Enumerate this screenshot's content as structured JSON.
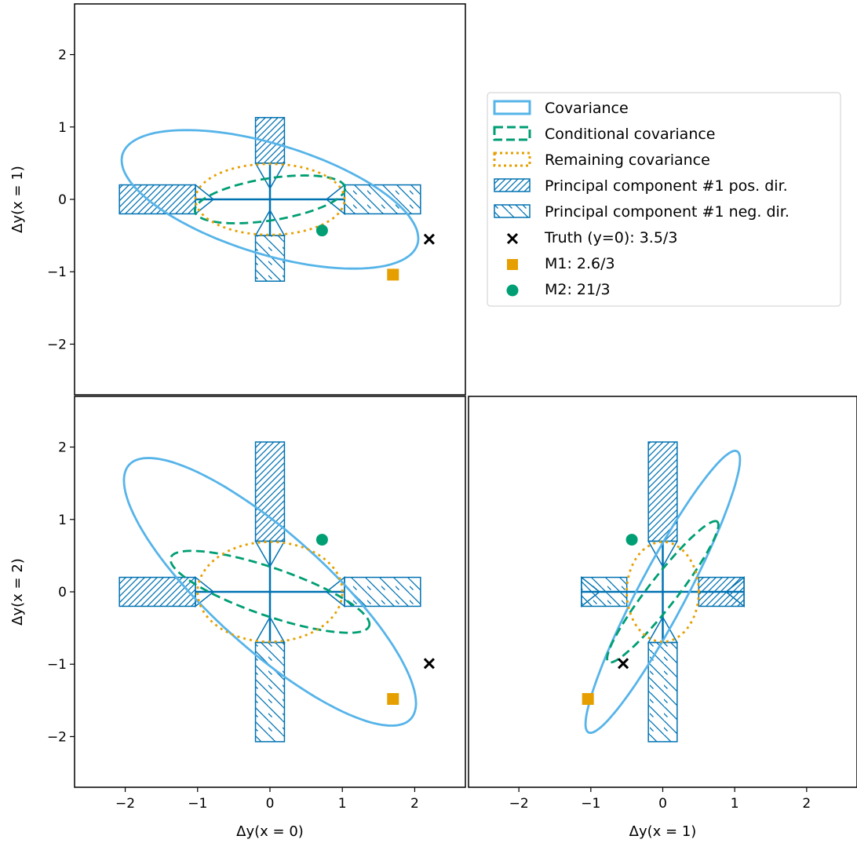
{
  "chart_data": [
    {
      "type": "scatter",
      "panel": "top-left",
      "xlabel": "",
      "ylabel": "Δy(x = 1)",
      "xlim": [
        -2.7,
        2.7
      ],
      "ylim": [
        -2.7,
        2.7
      ],
      "xticks": [],
      "yticks": [
        -2,
        -1,
        0,
        1,
        2
      ],
      "ytick_labels": [
        "−2",
        "−1",
        "0",
        "1",
        "2"
      ],
      "ellipses": [
        {
          "name": "Covariance",
          "cx": 0,
          "cy": 0,
          "a": 2.13,
          "b": 0.76,
          "angle_deg": -17
        },
        {
          "name": "Conditional covariance",
          "cx": 0,
          "cy": 0,
          "a": 1.05,
          "b": 0.29,
          "angle_deg": 9
        },
        {
          "name": "Remaining covariance",
          "cx": 0,
          "cy": 0,
          "a": 1.03,
          "b": 0.49,
          "angle_deg": 0
        }
      ],
      "pc_x": {
        "pos": [
          -2.08,
          -1.03
        ],
        "neg": [
          1.03,
          2.08
        ],
        "half_width": 0.2
      },
      "pc_y": {
        "pos": [
          0.5,
          1.13
        ],
        "neg": [
          -1.13,
          -0.5
        ],
        "half_width": 0.2
      },
      "points": {
        "truth": {
          "x": 2.2,
          "y": -0.55
        },
        "m1": {
          "x": 1.7,
          "y": -1.04
        },
        "m2": {
          "x": 0.72,
          "y": -0.43
        }
      }
    },
    {
      "type": "scatter",
      "panel": "bottom-left",
      "xlabel": "Δy(x = 0)",
      "ylabel": "Δy(x = 2)",
      "xlim": [
        -2.7,
        2.7
      ],
      "ylim": [
        -2.7,
        2.7
      ],
      "xticks": [
        -2,
        -1,
        0,
        1,
        2
      ],
      "xtick_labels": [
        "−2",
        "−1",
        "0",
        "1",
        "2"
      ],
      "yticks": [
        -2,
        -1,
        0,
        1,
        2
      ],
      "ytick_labels": [
        "−2",
        "−1",
        "0",
        "1",
        "2"
      ],
      "ellipses": [
        {
          "name": "Covariance",
          "cx": 0,
          "cy": 0,
          "a": 2.62,
          "b": 0.79,
          "angle_deg": -42
        },
        {
          "name": "Conditional covariance",
          "cx": 0,
          "cy": 0,
          "a": 1.45,
          "b": 0.33,
          "angle_deg": -19
        },
        {
          "name": "Remaining covariance",
          "cx": 0,
          "cy": 0,
          "a": 1.0,
          "b": 0.69,
          "angle_deg": 0
        }
      ],
      "pc_x": {
        "pos": [
          -2.08,
          -1.03
        ],
        "neg": [
          1.03,
          2.08
        ],
        "half_width": 0.2
      },
      "pc_y": {
        "pos": [
          0.7,
          2.07
        ],
        "neg": [
          -2.07,
          -0.7
        ],
        "half_width": 0.2
      },
      "points": {
        "truth": {
          "x": 2.2,
          "y": -0.99
        },
        "m1": {
          "x": 1.7,
          "y": -1.48
        },
        "m2": {
          "x": 0.72,
          "y": 0.72
        }
      }
    },
    {
      "type": "scatter",
      "panel": "bottom-right",
      "xlabel": "Δy(x = 1)",
      "ylabel": "",
      "xlim": [
        -2.7,
        2.7
      ],
      "ylim": [
        -2.7,
        2.7
      ],
      "xticks": [
        -2,
        -1,
        0,
        1,
        2
      ],
      "xtick_labels": [
        "−2",
        "−1",
        "0",
        "1",
        "2"
      ],
      "yticks": [],
      "ellipses": [
        {
          "name": "Covariance",
          "cx": 0,
          "cy": 0,
          "a": 2.2,
          "b": 0.33,
          "angle_deg": 62
        },
        {
          "name": "Conditional covariance",
          "cx": 0,
          "cy": 0,
          "a": 1.23,
          "b": 0.2,
          "angle_deg": 52
        },
        {
          "name": "Remaining covariance",
          "cx": 0,
          "cy": 0,
          "a": 0.5,
          "b": 0.69,
          "angle_deg": 0
        }
      ],
      "pc_x": {
        "pos": [
          0.5,
          1.13
        ],
        "neg": [
          -1.13,
          -0.5
        ],
        "half_width": 0.2
      },
      "pc_y": {
        "pos": [
          0.7,
          2.07
        ],
        "neg": [
          -2.07,
          -0.7
        ],
        "half_width": 0.2
      },
      "points": {
        "truth": {
          "x": -0.55,
          "y": -0.99
        },
        "m1": {
          "x": -1.04,
          "y": -1.48
        },
        "m2": {
          "x": -0.43,
          "y": 0.72
        }
      }
    }
  ],
  "legend": {
    "location": "upper-right-empty-panel",
    "entries": [
      {
        "key": "covariance",
        "label": "Covariance"
      },
      {
        "key": "conditional",
        "label": "Conditional covariance"
      },
      {
        "key": "remaining",
        "label": "Remaining covariance"
      },
      {
        "key": "pc_pos",
        "label": "Principal component #1 pos. dir."
      },
      {
        "key": "pc_neg",
        "label": "Principal component #1 neg. dir."
      },
      {
        "key": "truth",
        "label": "Truth (y=0): 3.5/3"
      },
      {
        "key": "m1",
        "label": "M1: 2.6/3"
      },
      {
        "key": "m2",
        "label": "M2: 21/3"
      }
    ]
  },
  "colors": {
    "covariance": "#56b4e9",
    "conditional": "#009e73",
    "remaining": "#e69f00",
    "pc": "#0072b2",
    "truth": "#000000",
    "m1": "#e69f00",
    "m2": "#009e73"
  }
}
